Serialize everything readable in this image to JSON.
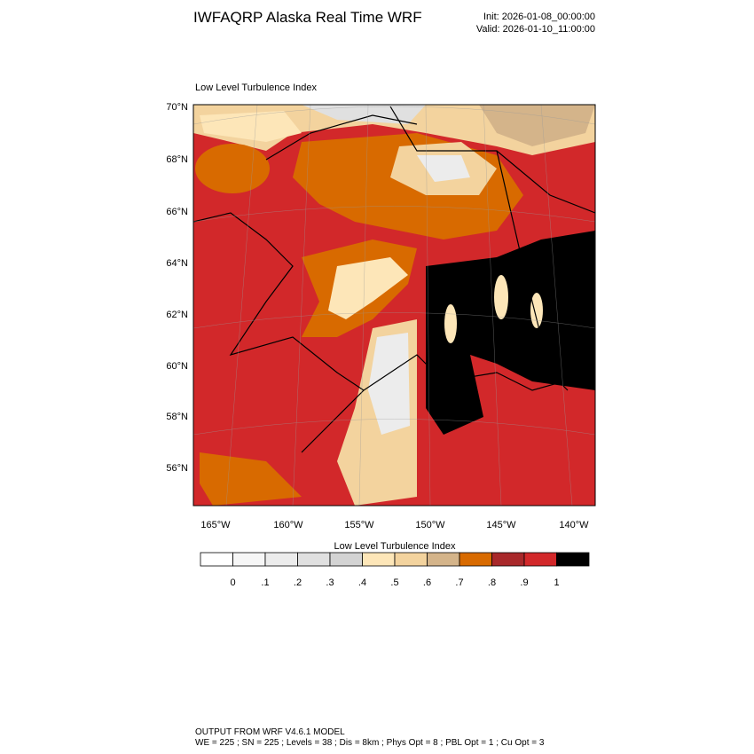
{
  "header": {
    "title": "IWFAQRP Alaska Real Time WRF",
    "init": "Init: 2026-01-08_00:00:00",
    "valid": "Valid: 2026-01-10_11:00:00"
  },
  "map": {
    "title": "Low Level Turbulence Index",
    "lat_labels": [
      "70°N",
      "68°N",
      "66°N",
      "64°N",
      "62°N",
      "60°N",
      "58°N",
      "56°N"
    ],
    "lon_labels": [
      "165°W",
      "160°W",
      "155°W",
      "150°W",
      "145°W",
      "140°W"
    ]
  },
  "colorbar": {
    "title": "Low Level Turbulence Index",
    "colors": [
      "#ffffff",
      "#f6f6f6",
      "#ececec",
      "#e0e0e0",
      "#d3d3d3",
      "#fde6b8",
      "#f3d39e",
      "#d4b48a",
      "#d86a00",
      "#a8282a",
      "#d2282a",
      "#000000"
    ],
    "labels": [
      "0",
      ".1",
      ".2",
      ".3",
      ".4",
      ".5",
      ".6",
      ".7",
      ".8",
      ".9",
      "1"
    ]
  },
  "footer": {
    "line1": "OUTPUT FROM WRF V4.6.1 MODEL",
    "line2": "WE = 225 ; SN = 225 ; Levels = 38 ; Dis = 8km ; Phys Opt = 8 ; PBL Opt = 1 ; Cu Opt = 3"
  }
}
